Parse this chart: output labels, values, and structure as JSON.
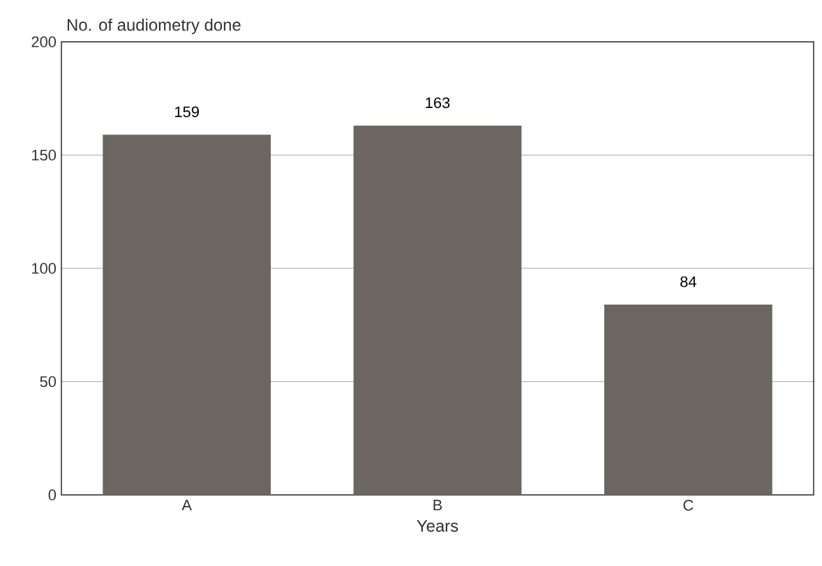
{
  "chart_data": {
    "type": "bar",
    "ylabel": "No. of audiometry done",
    "xlabel": "Years",
    "categories": [
      "A",
      "B",
      "C"
    ],
    "values": [
      159,
      163,
      84
    ],
    "color": "#6b6660",
    "ylim": [
      0,
      200
    ],
    "yticks": [
      0,
      50,
      100,
      150,
      200
    ],
    "grid": "y",
    "data_labels": true
  }
}
